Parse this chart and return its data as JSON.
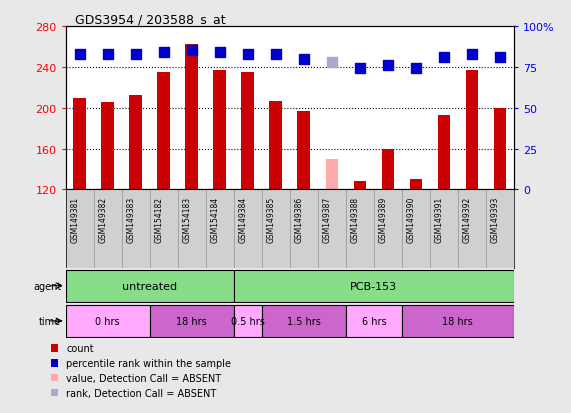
{
  "title": "GDS3954 / 203588_s_at",
  "samples": [
    "GSM149381",
    "GSM149382",
    "GSM149383",
    "GSM154182",
    "GSM154183",
    "GSM154184",
    "GSM149384",
    "GSM149385",
    "GSM149386",
    "GSM149387",
    "GSM149388",
    "GSM149389",
    "GSM149390",
    "GSM149391",
    "GSM149392",
    "GSM149393"
  ],
  "counts": [
    209,
    206,
    212,
    235,
    262,
    237,
    235,
    207,
    197,
    150,
    128,
    160,
    130,
    193,
    237,
    200
  ],
  "counts_absent": [
    false,
    false,
    false,
    false,
    false,
    false,
    false,
    false,
    false,
    true,
    false,
    false,
    false,
    false,
    false,
    false
  ],
  "percentile_ranks": [
    83,
    83,
    83,
    84,
    85,
    84,
    83,
    83,
    80,
    78,
    74,
    76,
    74,
    81,
    83,
    81
  ],
  "percentile_absent": [
    false,
    false,
    false,
    false,
    false,
    false,
    false,
    false,
    false,
    true,
    false,
    false,
    false,
    false,
    false,
    false
  ],
  "ylim_left": [
    120,
    280
  ],
  "ylim_right": [
    0,
    100
  ],
  "yticks_left": [
    120,
    160,
    200,
    240,
    280
  ],
  "yticks_right": [
    0,
    25,
    50,
    75,
    100
  ],
  "ytick_labels_right": [
    "0",
    "25",
    "50",
    "75",
    "100%"
  ],
  "bar_color": "#cc0000",
  "bar_color_absent": "#ffaaaa",
  "dot_color": "#0000cc",
  "dot_color_absent": "#aaaacc",
  "agent_groups": [
    {
      "label": "untreated",
      "start": 0,
      "end": 6,
      "color": "#88dd88"
    },
    {
      "label": "PCB-153",
      "start": 6,
      "end": 16,
      "color": "#88dd88"
    }
  ],
  "time_groups": [
    {
      "label": "0 hrs",
      "start": 0,
      "end": 3,
      "color": "#ffaaff"
    },
    {
      "label": "18 hrs",
      "start": 3,
      "end": 6,
      "color": "#cc66cc"
    },
    {
      "label": "0.5 hrs",
      "start": 6,
      "end": 7,
      "color": "#ffaaff"
    },
    {
      "label": "1.5 hrs",
      "start": 7,
      "end": 10,
      "color": "#cc66cc"
    },
    {
      "label": "6 hrs",
      "start": 10,
      "end": 12,
      "color": "#ffaaff"
    },
    {
      "label": "18 hrs",
      "start": 12,
      "end": 16,
      "color": "#cc66cc"
    }
  ],
  "legend_items": [
    {
      "color": "#cc0000",
      "label": "count",
      "type": "square"
    },
    {
      "color": "#0000cc",
      "label": "percentile rank within the sample",
      "type": "square"
    },
    {
      "color": "#ffaaaa",
      "label": "value, Detection Call = ABSENT",
      "type": "square"
    },
    {
      "color": "#aaaacc",
      "label": "rank, Detection Call = ABSENT",
      "type": "square"
    }
  ],
  "grid_color": "black",
  "background_color": "#e8e8e8",
  "plot_bg": "white",
  "bar_width": 0.45,
  "dot_size": 45,
  "dot_marker": "s",
  "label_box_color": "#d0d0d0",
  "label_box_border": "#999999"
}
